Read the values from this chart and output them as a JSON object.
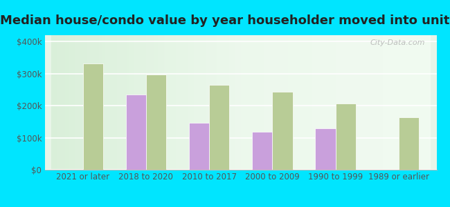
{
  "title": "Median house/condo value by year householder moved into unit",
  "categories": [
    "2021 or later",
    "2018 to 2020",
    "2010 to 2017",
    "2000 to 2009",
    "1990 to 1999",
    "1989 or earlier"
  ],
  "concord_values": [
    null,
    235000,
    147000,
    118000,
    130000,
    null
  ],
  "georgia_values": [
    332000,
    298000,
    265000,
    243000,
    207000,
    163000
  ],
  "concord_color": "#c9a0dc",
  "georgia_color": "#b8cc96",
  "background_color_topleft": "#e8f5e8",
  "background_color_topright": "#f8fff8",
  "outer_background": "#00e5ff",
  "ylabel_ticks": [
    "$0",
    "$100k",
    "$200k",
    "$300k",
    "$400k"
  ],
  "ytick_values": [
    0,
    100000,
    200000,
    300000,
    400000
  ],
  "ylim": [
    0,
    420000
  ],
  "bar_width": 0.32,
  "title_fontsize": 13,
  "tick_fontsize": 8.5,
  "legend_fontsize": 9.5,
  "watermark_text": "City-Data.com"
}
